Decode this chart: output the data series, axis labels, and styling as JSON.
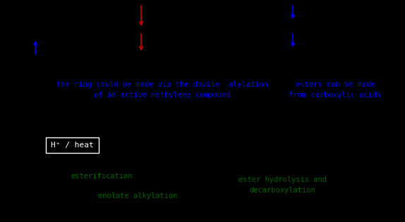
{
  "background_color": "#000000",
  "fig_width": 5.74,
  "fig_height": 3.15,
  "dpi": 100,
  "blue_text_1": "the ring could be made via the double  alylation",
  "blue_text_2": "of an active methylene compound",
  "blue_text_3": "esters can be made",
  "blue_text_4": "from carboxylic acids",
  "blue_text_fontsize": 7.5,
  "green_text_1": "esterification",
  "green_text_2": "enolate alkylation",
  "green_text_3": "ester hydrolysis and",
  "green_text_4": "decarboxylation",
  "green_text_fontsize": 7.5,
  "box_text": "H⁺ / heat",
  "text_color_blue": "#0000ff",
  "text_color_green": "#006600",
  "text_color_white": "#ffffff",
  "red_color": "#cc0000"
}
